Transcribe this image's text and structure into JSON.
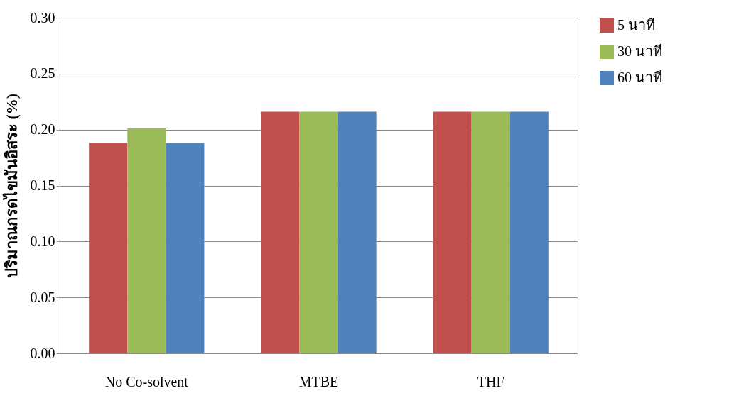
{
  "chart_data": {
    "type": "bar",
    "ylabel": "ปริมาณกรดไขมันอิสระ (%)",
    "categories": [
      "No Co-solvent",
      "MTBE",
      "THF"
    ],
    "series": [
      {
        "name": "5 นาที",
        "color": "#c0504d",
        "values": [
          0.188,
          0.216,
          0.216
        ]
      },
      {
        "name": "30 นาที",
        "color": "#9bbb59",
        "values": [
          0.201,
          0.216,
          0.216
        ]
      },
      {
        "name": "60 นาที",
        "color": "#4f81bd",
        "values": [
          0.188,
          0.216,
          0.216
        ]
      }
    ],
    "ylim": [
      0,
      0.3
    ],
    "yticks": [
      {
        "value": 0,
        "label": "0.00"
      },
      {
        "value": 0.05,
        "label": "0.05"
      },
      {
        "value": 0.1,
        "label": "0.10"
      },
      {
        "value": 0.15,
        "label": "0.15"
      },
      {
        "value": 0.2,
        "label": "0.20"
      },
      {
        "value": 0.25,
        "label": "0.25"
      },
      {
        "value": 0.3,
        "label": "0.30"
      }
    ],
    "grid": "y",
    "legend": "right"
  }
}
